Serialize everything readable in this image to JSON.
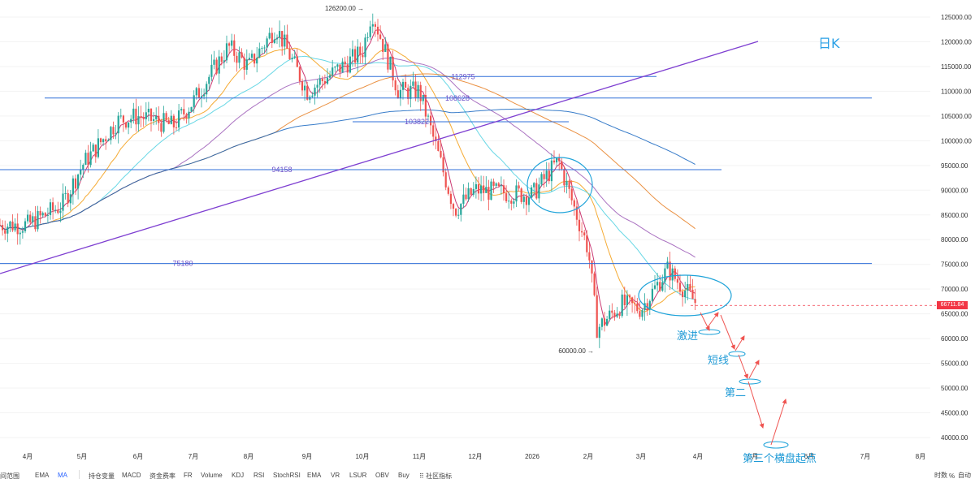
{
  "colors": {
    "candle_up": "#26a69a",
    "candle_down": "#ef5350",
    "hline": "#2f6fd8",
    "trendline": "#7e3fd1",
    "ellipse": "#1fa3d9",
    "annotation": "#1e9ad6",
    "last_price_bg": "#f23645"
  },
  "chart_data": {
    "type": "candlestick",
    "timeframe_label": "日K",
    "y_ticks": [
      "125000.00",
      "120000.00",
      "115000.00",
      "110000.00",
      "105000.00",
      "100000.00",
      "95000.00",
      "90000.00",
      "85000.00",
      "80000.00",
      "75000.00",
      "70000.00",
      "65000.00",
      "60000.00",
      "55000.00",
      "50000.00",
      "45000.00",
      "40000.00"
    ],
    "ylim": [
      38000,
      127500
    ],
    "x_ticks": [
      "4月",
      "5月",
      "6月",
      "7月",
      "8月",
      "9月",
      "10月",
      "11月",
      "12月",
      "2026",
      "2月",
      "3月",
      "4月",
      "5月",
      "6月",
      "7月",
      "8月"
    ],
    "last_price": {
      "value": 66711.84,
      "label": "66711.84"
    },
    "extreme_labels": [
      {
        "label": "126200.00",
        "value": 126200,
        "date": "10月"
      },
      {
        "label": "60000.00",
        "value": 60000,
        "date": "2月"
      }
    ],
    "horizontal_levels": [
      {
        "label": "112975",
        "value": 112975
      },
      {
        "label": "108628",
        "value": 108628
      },
      {
        "label": "103822",
        "value": 103822
      },
      {
        "label": "94158",
        "value": 94158
      },
      {
        "label": "75180",
        "value": 75180
      }
    ],
    "series_close": [
      {
        "date": "2025-04",
        "value": 83000
      },
      {
        "date": "2025-04-20",
        "value": 87000
      },
      {
        "date": "2025-05",
        "value": 95000
      },
      {
        "date": "2025-05-20",
        "value": 104000
      },
      {
        "date": "2025-06",
        "value": 105000
      },
      {
        "date": "2025-06-20",
        "value": 103000
      },
      {
        "date": "2025-07",
        "value": 108000
      },
      {
        "date": "2025-07-20",
        "value": 119000
      },
      {
        "date": "2025-08",
        "value": 115000
      },
      {
        "date": "2025-08-15",
        "value": 123000
      },
      {
        "date": "2025-09",
        "value": 110000
      },
      {
        "date": "2025-09-20",
        "value": 115000
      },
      {
        "date": "2025-10",
        "value": 118000
      },
      {
        "date": "2025-10-06",
        "value": 126200
      },
      {
        "date": "2025-10-20",
        "value": 110000
      },
      {
        "date": "2025-11",
        "value": 110000
      },
      {
        "date": "2025-11-20",
        "value": 86000
      },
      {
        "date": "2025-12",
        "value": 90000
      },
      {
        "date": "2026-01",
        "value": 89000
      },
      {
        "date": "2026-01-15",
        "value": 96000
      },
      {
        "date": "2026-02",
        "value": 78000
      },
      {
        "date": "2026-02-06",
        "value": 62000
      },
      {
        "date": "2026-02-20",
        "value": 67000
      },
      {
        "date": "2026-03",
        "value": 66000
      },
      {
        "date": "2026-03-15",
        "value": 74000
      },
      {
        "date": "2026-04",
        "value": 66711.84
      }
    ],
    "annotations": [
      "激进",
      "短线",
      "第二",
      "第三个横盘起点"
    ]
  },
  "toolbar": {
    "left_cut_label": "间范围",
    "items": [
      "EMA",
      "MA",
      "持仓变量",
      "MACD",
      "资金费率",
      "FR",
      "Volume",
      "KDJ",
      "RSI",
      "StochRSI",
      "EMA",
      "VR",
      "LSUR",
      "OBV",
      "Buy",
      "社区指标"
    ],
    "right": {
      "time": "时数",
      "percent": "%",
      "auto": "自动"
    }
  }
}
